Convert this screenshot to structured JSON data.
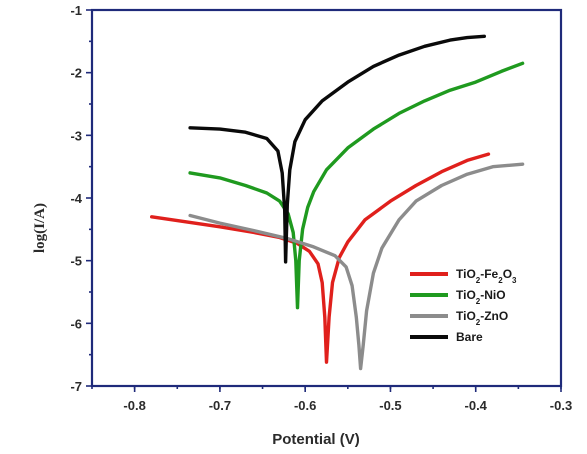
{
  "chart_data": {
    "type": "line",
    "xlabel": "Potential (V)",
    "ylabel": "log(I/A)",
    "xlim": [
      -0.85,
      -0.3
    ],
    "ylim": [
      -7,
      -1
    ],
    "xticks": [
      -0.8,
      -0.7,
      -0.6,
      -0.5,
      -0.4,
      -0.3
    ],
    "xtick_labels": [
      "-0.8",
      "-0.7",
      "-0.6",
      "-0.5",
      "-0.4",
      "-0.3"
    ],
    "yticks": [
      -1,
      -2,
      -3,
      -4,
      -5,
      -6,
      -7
    ],
    "ytick_labels": [
      "-1",
      "-2",
      "-3",
      "-4",
      "-5",
      "-6",
      "-7"
    ],
    "legend_position": "bottom-right",
    "series": [
      {
        "name": "TiO2-Fe2O3",
        "label_parts": [
          [
            "TiO",
            ""
          ],
          [
            "2",
            "sub"
          ],
          [
            "-Fe",
            ""
          ],
          [
            "2",
            "sub"
          ],
          [
            "O",
            ""
          ],
          [
            "3",
            "sub"
          ]
        ],
        "color": "#e0201c",
        "x": [
          -0.78,
          -0.74,
          -0.7,
          -0.66,
          -0.63,
          -0.61,
          -0.595,
          -0.585,
          -0.58,
          -0.577,
          -0.575,
          -0.572,
          -0.568,
          -0.56,
          -0.55,
          -0.53,
          -0.5,
          -0.47,
          -0.44,
          -0.41,
          -0.385
        ],
        "y": [
          -4.3,
          -4.38,
          -4.46,
          -4.55,
          -4.63,
          -4.72,
          -4.85,
          -5.05,
          -5.35,
          -5.9,
          -6.62,
          -5.9,
          -5.35,
          -4.95,
          -4.7,
          -4.35,
          -4.05,
          -3.8,
          -3.58,
          -3.4,
          -3.3
        ]
      },
      {
        "name": "TiO2-NiO",
        "label_parts": [
          [
            "TiO",
            ""
          ],
          [
            "2",
            "sub"
          ],
          [
            "-NiO",
            ""
          ]
        ],
        "color": "#1f9a1f",
        "x": [
          -0.735,
          -0.7,
          -0.67,
          -0.645,
          -0.63,
          -0.62,
          -0.614,
          -0.611,
          -0.609,
          -0.607,
          -0.603,
          -0.597,
          -0.59,
          -0.575,
          -0.55,
          -0.52,
          -0.49,
          -0.46,
          -0.43,
          -0.4,
          -0.37,
          -0.345
        ],
        "y": [
          -3.6,
          -3.68,
          -3.8,
          -3.92,
          -4.05,
          -4.25,
          -4.55,
          -5.0,
          -5.75,
          -5.0,
          -4.5,
          -4.15,
          -3.9,
          -3.55,
          -3.2,
          -2.9,
          -2.65,
          -2.45,
          -2.28,
          -2.15,
          -1.98,
          -1.85
        ]
      },
      {
        "name": "TiO2-ZnO",
        "label_parts": [
          [
            "TiO",
            ""
          ],
          [
            "2",
            "sub"
          ],
          [
            "-ZnO",
            ""
          ]
        ],
        "color": "#8c8c8c",
        "x": [
          -0.735,
          -0.7,
          -0.66,
          -0.62,
          -0.59,
          -0.565,
          -0.552,
          -0.545,
          -0.54,
          -0.537,
          -0.535,
          -0.532,
          -0.528,
          -0.52,
          -0.51,
          -0.49,
          -0.47,
          -0.44,
          -0.41,
          -0.38,
          -0.345
        ],
        "y": [
          -4.28,
          -4.4,
          -4.52,
          -4.65,
          -4.78,
          -4.92,
          -5.1,
          -5.4,
          -5.9,
          -6.35,
          -6.72,
          -6.35,
          -5.8,
          -5.2,
          -4.8,
          -4.35,
          -4.05,
          -3.8,
          -3.62,
          -3.5,
          -3.46
        ]
      },
      {
        "name": "Bare",
        "label_parts": [
          [
            "Bare",
            ""
          ]
        ],
        "color": "#0a0a0a",
        "x": [
          -0.735,
          -0.7,
          -0.67,
          -0.645,
          -0.632,
          -0.627,
          -0.624,
          -0.623,
          -0.621,
          -0.618,
          -0.612,
          -0.6,
          -0.58,
          -0.55,
          -0.52,
          -0.49,
          -0.46,
          -0.43,
          -0.41,
          -0.39
        ],
        "y": [
          -2.88,
          -2.9,
          -2.95,
          -3.05,
          -3.25,
          -3.6,
          -4.2,
          -5.02,
          -4.1,
          -3.55,
          -3.1,
          -2.75,
          -2.45,
          -2.15,
          -1.9,
          -1.72,
          -1.58,
          -1.48,
          -1.44,
          -1.42
        ]
      }
    ]
  }
}
